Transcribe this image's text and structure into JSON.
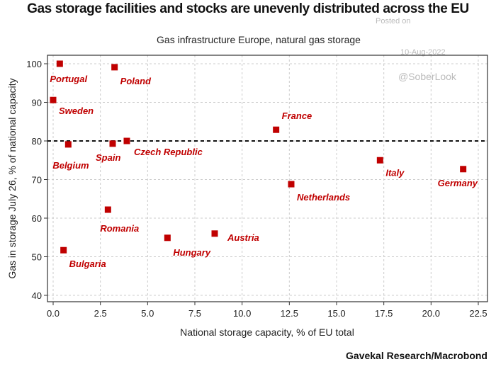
{
  "chart_data": {
    "type": "scatter",
    "title": "Gas storage facilities and stocks are unevenly distributed across the EU",
    "subtitle": "Gas infrastructure Europe, natural gas storage",
    "xlabel": "National storage capacity, % of EU total",
    "ylabel": "Gas in storage July 26, % of national capacity",
    "xlim": [
      -0.3,
      23
    ],
    "ylim": [
      38,
      102
    ],
    "xticks": [
      "0.0",
      "2.5",
      "5.0",
      "7.5",
      "10.0",
      "12.5",
      "15.0",
      "17.5",
      "20.0",
      "22.5"
    ],
    "yticks": [
      "40",
      "50",
      "60",
      "70",
      "80",
      "90",
      "100"
    ],
    "grid": true,
    "reference_line": {
      "y": 80,
      "style": "dashed"
    },
    "marker_color": "#c00000",
    "points": [
      {
        "label": "Portugal",
        "x": 0.35,
        "y": 100
      },
      {
        "label": "Poland",
        "x": 3.25,
        "y": 99.1
      },
      {
        "label": "Sweden",
        "x": 0.0,
        "y": 90.6
      },
      {
        "label": "France",
        "x": 11.8,
        "y": 82.9
      },
      {
        "label": "Belgium",
        "x": 0.8,
        "y": 79.1
      },
      {
        "label": "Spain",
        "x": 3.15,
        "y": 79.3
      },
      {
        "label": "Czech Republic",
        "x": 3.9,
        "y": 80
      },
      {
        "label": "Italy",
        "x": 17.3,
        "y": 75
      },
      {
        "label": "Germany",
        "x": 21.7,
        "y": 72.7
      },
      {
        "label": "Netherlands",
        "x": 12.6,
        "y": 68.8
      },
      {
        "label": "Romania",
        "x": 2.9,
        "y": 62.2
      },
      {
        "label": "Austria",
        "x": 8.55,
        "y": 56
      },
      {
        "label": "Hungary",
        "x": 6.05,
        "y": 54.9
      },
      {
        "label": "Bulgaria",
        "x": 0.55,
        "y": 51.7
      }
    ]
  },
  "watermarks": {
    "posted": "Posted on",
    "date": "10-Aug-2022",
    "handle": "@SoberLook"
  },
  "source": "Gavekal Research/Macrobond"
}
